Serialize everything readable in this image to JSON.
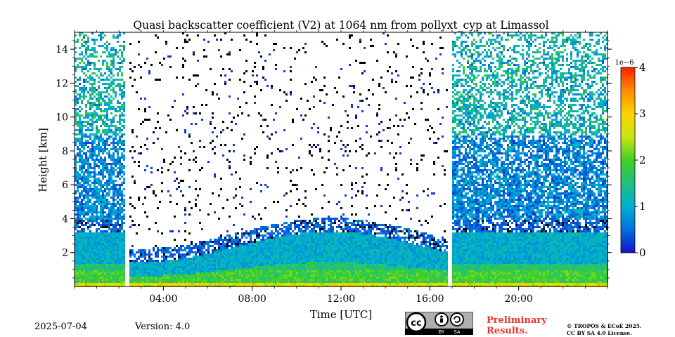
{
  "chart_data": {
    "type": "heatmap",
    "title": "Quasi backscatter coefficient (V2) at 1064 nm from pollyxt_cyp at Limassol",
    "xlabel": "Time [UTC]",
    "ylabel": "Height [km]",
    "x_range": [
      "00:00",
      "24:00"
    ],
    "ylim": [
      0,
      15
    ],
    "x_ticks": [
      "04:00",
      "08:00",
      "12:00",
      "16:00",
      "20:00"
    ],
    "y_ticks": [
      2,
      4,
      6,
      8,
      10,
      12,
      14
    ],
    "colorbar": {
      "label": "1e−6",
      "ticks": [
        0,
        1,
        2,
        3,
        4
      ],
      "range": [
        0,
        4
      ],
      "colormap": [
        "#1414c8",
        "#0070e0",
        "#00b0d0",
        "#20c080",
        "#40d020",
        "#c8e614",
        "#ffd200",
        "#ff8c00",
        "#ff2000"
      ]
    },
    "data_gaps_utc": [
      "02:22",
      "16:50"
    ],
    "description": []
  },
  "footer": {
    "date": "2025-07-04",
    "version": "Version: 4.0",
    "preliminary_line1": "Preliminary",
    "preliminary_line2": "Results.",
    "license_line1": "© TROPOS & ECoE 2025.",
    "license_line2": "CC BY SA 4.0 License.",
    "cc_labels": [
      "BY",
      "SA"
    ]
  }
}
